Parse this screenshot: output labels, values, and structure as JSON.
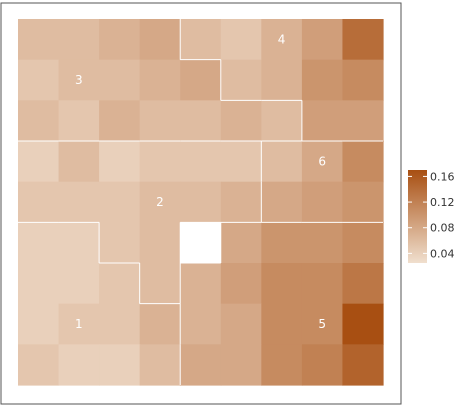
{
  "chart_data": {
    "type": "heatmap",
    "title": "",
    "xlabel": "",
    "ylabel": "",
    "rows": 9,
    "cols": 9,
    "values": [
      [
        0.06,
        0.06,
        0.07,
        0.08,
        0.06,
        0.05,
        0.07,
        0.09,
        0.14
      ],
      [
        0.05,
        0.06,
        0.06,
        0.07,
        0.08,
        0.06,
        0.07,
        0.1,
        0.11
      ],
      [
        0.06,
        0.05,
        0.07,
        0.06,
        0.06,
        0.07,
        0.06,
        0.09,
        0.09
      ],
      [
        0.04,
        0.06,
        0.04,
        0.05,
        0.05,
        0.05,
        0.06,
        0.08,
        0.11
      ],
      [
        0.05,
        0.05,
        0.05,
        0.06,
        0.06,
        0.07,
        0.08,
        0.09,
        0.1
      ],
      [
        0.04,
        0.04,
        0.05,
        0.06,
        null,
        0.08,
        0.1,
        0.1,
        0.11
      ],
      [
        0.04,
        0.04,
        0.05,
        0.06,
        0.07,
        0.09,
        0.11,
        0.11,
        0.13
      ],
      [
        0.04,
        0.05,
        0.05,
        0.07,
        0.07,
        0.08,
        0.11,
        0.11,
        0.17
      ],
      [
        0.05,
        0.04,
        0.04,
        0.06,
        0.08,
        0.08,
        0.11,
        0.12,
        0.15
      ]
    ],
    "regions": [
      {
        "label": "1",
        "cells": [
          [
            5,
            0
          ],
          [
            5,
            1
          ],
          [
            6,
            0
          ],
          [
            6,
            1
          ],
          [
            6,
            2
          ],
          [
            7,
            0
          ],
          [
            7,
            1
          ],
          [
            7,
            2
          ],
          [
            7,
            3
          ],
          [
            8,
            0
          ],
          [
            8,
            1
          ],
          [
            8,
            2
          ],
          [
            8,
            3
          ]
        ]
      },
      {
        "label": "2",
        "cells": [
          [
            3,
            0
          ],
          [
            3,
            1
          ],
          [
            3,
            2
          ],
          [
            3,
            3
          ],
          [
            3,
            4
          ],
          [
            3,
            5
          ],
          [
            4,
            0
          ],
          [
            4,
            1
          ],
          [
            4,
            2
          ],
          [
            4,
            3
          ],
          [
            4,
            4
          ],
          [
            4,
            5
          ],
          [
            5,
            2
          ],
          [
            5,
            3
          ],
          [
            6,
            3
          ]
        ]
      },
      {
        "label": "3",
        "cells": [
          [
            0,
            0
          ],
          [
            0,
            1
          ],
          [
            0,
            2
          ],
          [
            0,
            3
          ],
          [
            1,
            0
          ],
          [
            1,
            1
          ],
          [
            1,
            2
          ],
          [
            1,
            3
          ],
          [
            1,
            4
          ],
          [
            2,
            0
          ],
          [
            2,
            1
          ],
          [
            2,
            2
          ],
          [
            2,
            3
          ],
          [
            2,
            4
          ],
          [
            2,
            5
          ],
          [
            2,
            6
          ]
        ]
      },
      {
        "label": "4",
        "cells": [
          [
            0,
            4
          ],
          [
            0,
            5
          ],
          [
            0,
            6
          ],
          [
            0,
            7
          ],
          [
            0,
            8
          ],
          [
            1,
            5
          ],
          [
            1,
            6
          ],
          [
            1,
            7
          ],
          [
            1,
            8
          ],
          [
            2,
            7
          ],
          [
            2,
            8
          ]
        ]
      },
      {
        "label": "5",
        "cells": [
          [
            5,
            5
          ],
          [
            5,
            6
          ],
          [
            5,
            7
          ],
          [
            5,
            8
          ],
          [
            6,
            4
          ],
          [
            6,
            5
          ],
          [
            6,
            6
          ],
          [
            6,
            7
          ],
          [
            6,
            8
          ],
          [
            7,
            4
          ],
          [
            7,
            5
          ],
          [
            7,
            6
          ],
          [
            7,
            7
          ],
          [
            7,
            8
          ],
          [
            8,
            4
          ],
          [
            8,
            5
          ],
          [
            8,
            6
          ],
          [
            8,
            7
          ],
          [
            8,
            8
          ]
        ]
      },
      {
        "label": "6",
        "cells": [
          [
            3,
            6
          ],
          [
            3,
            7
          ],
          [
            3,
            8
          ],
          [
            4,
            6
          ],
          [
            4,
            7
          ],
          [
            4,
            8
          ]
        ]
      }
    ],
    "label_cells": {
      "1": [
        7,
        1
      ],
      "2": [
        4,
        3
      ],
      "3": [
        1,
        1
      ],
      "4": [
        0,
        6
      ],
      "5": [
        7,
        7
      ],
      "6": [
        3,
        7
      ]
    },
    "legend": {
      "placement": "right",
      "ticks": [
        0.04,
        0.08,
        0.12,
        0.16
      ],
      "min": 0.025,
      "max": 0.17
    },
    "colors": {
      "low": "#f0dfce",
      "high": "#a84f12",
      "missing": "#ffffff",
      "border": "#ffffff"
    }
  }
}
